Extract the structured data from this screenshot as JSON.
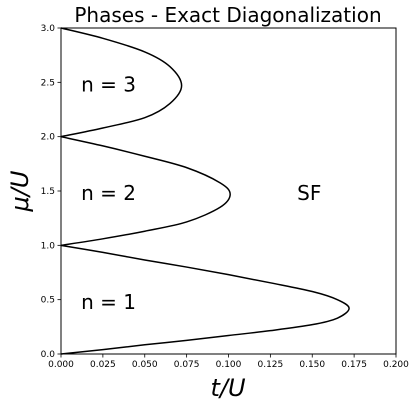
{
  "chart_data": {
    "type": "line",
    "title": "Phases - Exact Diagonalization",
    "xlabel": "t/U",
    "ylabel": "μ/U",
    "xlim": [
      0.0,
      0.2
    ],
    "ylim": [
      0.0,
      3.0
    ],
    "x_ticks": [
      "0.000",
      "0.025",
      "0.050",
      "0.075",
      "0.100",
      "0.125",
      "0.150",
      "0.175",
      "0.200"
    ],
    "y_ticks": [
      "0.0",
      "0.5",
      "1.0",
      "1.5",
      "2.0",
      "2.5",
      "3.0"
    ],
    "grid": false,
    "line_color": "#000000",
    "lobes": [
      {
        "label": "n = 1",
        "tip": {
          "t": 0.172,
          "mu": 0.42
        },
        "upper": [
          [
            0.0,
            1.0
          ],
          [
            0.025,
            0.935
          ],
          [
            0.05,
            0.865
          ],
          [
            0.075,
            0.8
          ],
          [
            0.1,
            0.73
          ],
          [
            0.125,
            0.655
          ],
          [
            0.15,
            0.575
          ],
          [
            0.165,
            0.5
          ],
          [
            0.172,
            0.42
          ]
        ],
        "lower": [
          [
            0.0,
            0.0
          ],
          [
            0.025,
            0.04
          ],
          [
            0.05,
            0.085
          ],
          [
            0.075,
            0.125
          ],
          [
            0.1,
            0.17
          ],
          [
            0.125,
            0.215
          ],
          [
            0.15,
            0.27
          ],
          [
            0.165,
            0.33
          ],
          [
            0.172,
            0.42
          ]
        ]
      },
      {
        "label": "n = 2",
        "tip": {
          "t": 0.101,
          "mu": 1.47
        },
        "upper": [
          [
            0.0,
            2.0
          ],
          [
            0.025,
            1.915
          ],
          [
            0.05,
            1.82
          ],
          [
            0.075,
            1.715
          ],
          [
            0.095,
            1.575
          ],
          [
            0.101,
            1.47
          ]
        ],
        "lower": [
          [
            0.0,
            1.0
          ],
          [
            0.025,
            1.06
          ],
          [
            0.05,
            1.13
          ],
          [
            0.075,
            1.215
          ],
          [
            0.095,
            1.35
          ],
          [
            0.101,
            1.47
          ]
        ]
      },
      {
        "label": "n = 3",
        "tip": {
          "t": 0.072,
          "mu": 2.47
        },
        "upper": [
          [
            0.0,
            3.0
          ],
          [
            0.025,
            2.905
          ],
          [
            0.05,
            2.78
          ],
          [
            0.065,
            2.645
          ],
          [
            0.072,
            2.47
          ]
        ],
        "lower": [
          [
            0.0,
            2.0
          ],
          [
            0.025,
            2.08
          ],
          [
            0.05,
            2.175
          ],
          [
            0.065,
            2.305
          ],
          [
            0.072,
            2.47
          ]
        ]
      }
    ],
    "annotations": [
      {
        "text": "n = 1",
        "t": 0.012,
        "mu": 0.48
      },
      {
        "text": "n = 2",
        "t": 0.012,
        "mu": 1.48
      },
      {
        "text": "n = 3",
        "t": 0.012,
        "mu": 2.48
      },
      {
        "text": "SF",
        "t": 0.141,
        "mu": 1.48
      }
    ]
  }
}
